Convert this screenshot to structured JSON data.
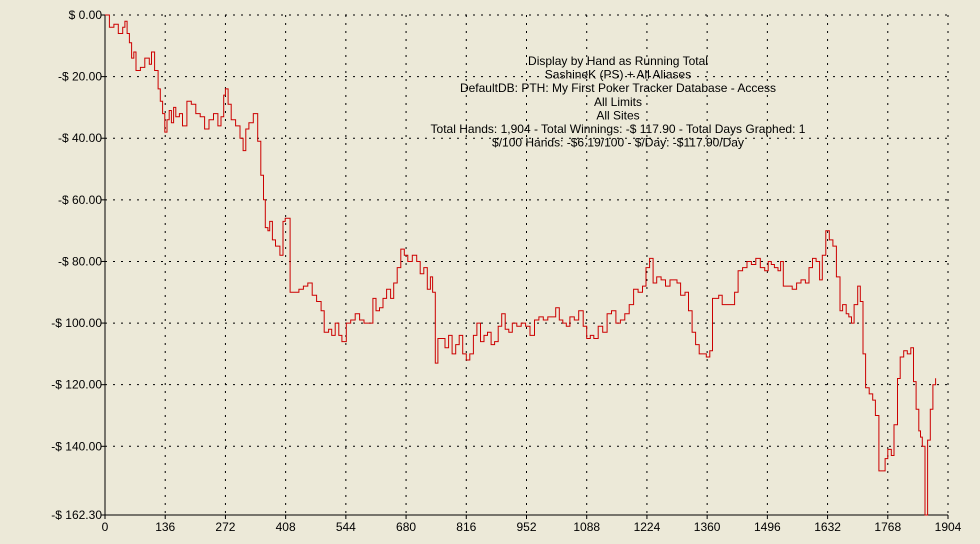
{
  "chart_data": {
    "type": "line",
    "info_lines": [
      "Display by Hand as Running Total",
      "SashineK (PS) + All Aliases",
      "DefaultDB: PTH: My First Poker Tracker Database - Access",
      "All Limits",
      "All Sites",
      "Total Hands: 1,904 - Total Winnings: -$ 117.90 - Total Days Graphed: 1",
      "$/100 Hands: -$6.19/100 - $/Day: -$117.90/Day"
    ],
    "x_ticks": [
      "0",
      "136",
      "272",
      "408",
      "544",
      "680",
      "816",
      "952",
      "1088",
      "1224",
      "1360",
      "1496",
      "1632",
      "1768",
      "1904"
    ],
    "y_ticks": [
      {
        "label": "$ 0.00",
        "value": 0
      },
      {
        "label": "-$ 20.00",
        "value": -20
      },
      {
        "label": "-$ 40.00",
        "value": -40
      },
      {
        "label": "-$ 60.00",
        "value": -60
      },
      {
        "label": "-$ 80.00",
        "value": -80
      },
      {
        "label": "-$ 100.00",
        "value": -100
      },
      {
        "label": "-$ 120.00",
        "value": -120
      },
      {
        "label": "-$ 140.00",
        "value": -140
      },
      {
        "label": "-$ 162.30",
        "value": -162.3
      }
    ],
    "xlim": [
      0,
      1904
    ],
    "ylim": [
      -162.3,
      0
    ],
    "grid": true,
    "line_color": "#cc0000",
    "series": [
      {
        "values": [
          [
            0,
            0
          ],
          [
            10,
            -4
          ],
          [
            20,
            -3
          ],
          [
            30,
            -6
          ],
          [
            40,
            -4
          ],
          [
            45,
            -2
          ],
          [
            50,
            -6
          ],
          [
            55,
            -9
          ],
          [
            60,
            -14
          ],
          [
            65,
            -12
          ],
          [
            70,
            -18
          ],
          [
            80,
            -17
          ],
          [
            90,
            -14
          ],
          [
            100,
            -16
          ],
          [
            105,
            -12
          ],
          [
            112,
            -18
          ],
          [
            120,
            -24
          ],
          [
            125,
            -28
          ],
          [
            130,
            -32
          ],
          [
            135,
            -38
          ],
          [
            140,
            -34
          ],
          [
            145,
            -31
          ],
          [
            150,
            -35
          ],
          [
            155,
            -30
          ],
          [
            160,
            -33
          ],
          [
            168,
            -32
          ],
          [
            175,
            -36
          ],
          [
            185,
            -28
          ],
          [
            195,
            -29
          ],
          [
            205,
            -32
          ],
          [
            215,
            -33
          ],
          [
            225,
            -37
          ],
          [
            235,
            -34
          ],
          [
            245,
            -32
          ],
          [
            255,
            -36
          ],
          [
            262,
            -33
          ],
          [
            268,
            -26
          ],
          [
            272,
            -24
          ],
          [
            278,
            -29
          ],
          [
            285,
            -34
          ],
          [
            295,
            -36
          ],
          [
            305,
            -40
          ],
          [
            312,
            -44
          ],
          [
            318,
            -37
          ],
          [
            325,
            -35
          ],
          [
            335,
            -32
          ],
          [
            345,
            -41
          ],
          [
            352,
            -52
          ],
          [
            358,
            -60
          ],
          [
            362,
            -69
          ],
          [
            368,
            -70
          ],
          [
            372,
            -67
          ],
          [
            378,
            -73
          ],
          [
            385,
            -75
          ],
          [
            395,
            -78
          ],
          [
            402,
            -67
          ],
          [
            407,
            -66
          ],
          [
            413,
            -66
          ],
          [
            418,
            -90
          ],
          [
            428,
            -90
          ],
          [
            438,
            -89
          ],
          [
            448,
            -88
          ],
          [
            458,
            -87
          ],
          [
            468,
            -91
          ],
          [
            478,
            -93
          ],
          [
            488,
            -96
          ],
          [
            495,
            -103
          ],
          [
            505,
            -102
          ],
          [
            512,
            -104
          ],
          [
            520,
            -100
          ],
          [
            528,
            -104
          ],
          [
            535,
            -106
          ],
          [
            545,
            -100
          ],
          [
            555,
            -99
          ],
          [
            565,
            -97
          ],
          [
            575,
            -99
          ],
          [
            585,
            -100
          ],
          [
            595,
            -100
          ],
          [
            605,
            -92
          ],
          [
            612,
            -96
          ],
          [
            620,
            -95
          ],
          [
            628,
            -92
          ],
          [
            636,
            -89
          ],
          [
            645,
            -92
          ],
          [
            652,
            -87
          ],
          [
            660,
            -82
          ],
          [
            668,
            -76
          ],
          [
            676,
            -78
          ],
          [
            684,
            -80
          ],
          [
            694,
            -78
          ],
          [
            704,
            -80
          ],
          [
            712,
            -84
          ],
          [
            720,
            -82
          ],
          [
            728,
            -89
          ],
          [
            735,
            -85
          ],
          [
            740,
            -90
          ],
          [
            746,
            -113
          ],
          [
            752,
            -105
          ],
          [
            760,
            -105
          ],
          [
            768,
            -108
          ],
          [
            776,
            -104
          ],
          [
            784,
            -110
          ],
          [
            792,
            -107
          ],
          [
            800,
            -104
          ],
          [
            808,
            -110
          ],
          [
            816,
            -112
          ],
          [
            824,
            -110
          ],
          [
            832,
            -104
          ],
          [
            840,
            -100
          ],
          [
            848,
            -106
          ],
          [
            856,
            -104
          ],
          [
            864,
            -103
          ],
          [
            872,
            -107
          ],
          [
            880,
            -106
          ],
          [
            888,
            -101
          ],
          [
            896,
            -97
          ],
          [
            904,
            -102
          ],
          [
            912,
            -103
          ],
          [
            920,
            -100
          ],
          [
            930,
            -101
          ],
          [
            940,
            -100
          ],
          [
            950,
            -101
          ],
          [
            960,
            -104
          ],
          [
            970,
            -99
          ],
          [
            980,
            -98
          ],
          [
            990,
            -99
          ],
          [
            1000,
            -98
          ],
          [
            1010,
            -98
          ],
          [
            1018,
            -95
          ],
          [
            1026,
            -99
          ],
          [
            1034,
            -100
          ],
          [
            1042,
            -101
          ],
          [
            1050,
            -98
          ],
          [
            1060,
            -99
          ],
          [
            1070,
            -96
          ],
          [
            1080,
            -101
          ],
          [
            1088,
            -105
          ],
          [
            1096,
            -104
          ],
          [
            1104,
            -105
          ],
          [
            1114,
            -101
          ],
          [
            1124,
            -103
          ],
          [
            1134,
            -97
          ],
          [
            1144,
            -96
          ],
          [
            1154,
            -100
          ],
          [
            1164,
            -99
          ],
          [
            1174,
            -97
          ],
          [
            1184,
            -94
          ],
          [
            1194,
            -89
          ],
          [
            1204,
            -90
          ],
          [
            1214,
            -88
          ],
          [
            1222,
            -82
          ],
          [
            1230,
            -79
          ],
          [
            1238,
            -87
          ],
          [
            1246,
            -85
          ],
          [
            1256,
            -86
          ],
          [
            1266,
            -88
          ],
          [
            1276,
            -86
          ],
          [
            1284,
            -86
          ],
          [
            1292,
            -87
          ],
          [
            1300,
            -91
          ],
          [
            1310,
            -90
          ],
          [
            1318,
            -96
          ],
          [
            1326,
            -103
          ],
          [
            1334,
            -107
          ],
          [
            1342,
            -110
          ],
          [
            1350,
            -110
          ],
          [
            1358,
            -111
          ],
          [
            1366,
            -109
          ],
          [
            1372,
            -92
          ],
          [
            1380,
            -92
          ],
          [
            1386,
            -91
          ],
          [
            1394,
            -94
          ],
          [
            1402,
            -94
          ],
          [
            1412,
            -94
          ],
          [
            1422,
            -90
          ],
          [
            1430,
            -83
          ],
          [
            1440,
            -82
          ],
          [
            1450,
            -80
          ],
          [
            1460,
            -81
          ],
          [
            1470,
            -79
          ],
          [
            1480,
            -82
          ],
          [
            1490,
            -83
          ],
          [
            1498,
            -80
          ],
          [
            1505,
            -81
          ],
          [
            1512,
            -82
          ],
          [
            1520,
            -83
          ],
          [
            1526,
            -80
          ],
          [
            1532,
            -88
          ],
          [
            1542,
            -88
          ],
          [
            1552,
            -89
          ],
          [
            1562,
            -87
          ],
          [
            1572,
            -86
          ],
          [
            1582,
            -87
          ],
          [
            1590,
            -82
          ],
          [
            1598,
            -79
          ],
          [
            1606,
            -80
          ],
          [
            1614,
            -86
          ],
          [
            1620,
            -78
          ],
          [
            1628,
            -70
          ],
          [
            1636,
            -73
          ],
          [
            1644,
            -75
          ],
          [
            1652,
            -85
          ],
          [
            1660,
            -96
          ],
          [
            1666,
            -94
          ],
          [
            1674,
            -97
          ],
          [
            1680,
            -98
          ],
          [
            1686,
            -100
          ],
          [
            1692,
            -94
          ],
          [
            1700,
            -88
          ],
          [
            1706,
            -93
          ],
          [
            1712,
            -110
          ],
          [
            1718,
            -121
          ],
          [
            1726,
            -123
          ],
          [
            1734,
            -125
          ],
          [
            1740,
            -130
          ],
          [
            1748,
            -148
          ],
          [
            1756,
            -148
          ],
          [
            1762,
            -144
          ],
          [
            1768,
            -141
          ],
          [
            1776,
            -143
          ],
          [
            1782,
            -133
          ],
          [
            1790,
            -118
          ],
          [
            1796,
            -111
          ],
          [
            1804,
            -109
          ],
          [
            1812,
            -110
          ],
          [
            1820,
            -108
          ],
          [
            1826,
            -119
          ],
          [
            1832,
            -128
          ],
          [
            1838,
            -135
          ],
          [
            1842,
            -137
          ],
          [
            1846,
            -140
          ],
          [
            1852,
            -162.3
          ],
          [
            1858,
            -138
          ],
          [
            1864,
            -128
          ],
          [
            1870,
            -120
          ],
          [
            1876,
            -117.9
          ]
        ]
      }
    ]
  }
}
